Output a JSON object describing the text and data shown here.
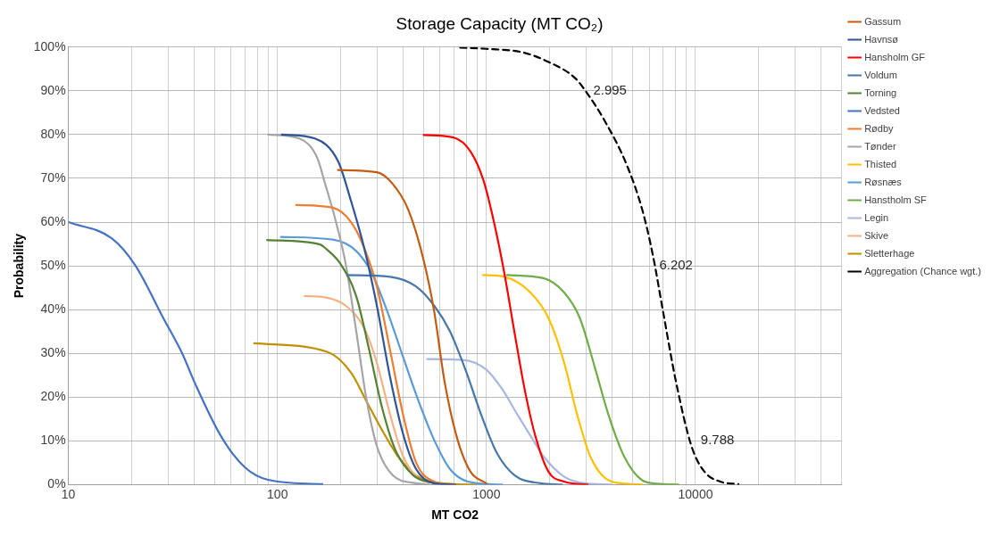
{
  "chart_data": {
    "type": "line",
    "title": "Storage Capacity (MT CO₂)",
    "xlabel": "MT CO2",
    "ylabel": "Probability",
    "log": "x",
    "grid": true,
    "legend": "top right",
    "marker": "none",
    "xlim": [
      10,
      50000
    ],
    "xticks": [
      10,
      {
        "value": 20,
        "label": null
      },
      {
        "value": 30,
        "label": null
      },
      {
        "value": 40,
        "label": null
      },
      {
        "value": 50,
        "label": null
      },
      {
        "value": 60,
        "label": null
      },
      {
        "value": 70,
        "label": null
      },
      {
        "value": 80,
        "label": null
      },
      {
        "value": 90,
        "label": null
      },
      100,
      {
        "value": 200,
        "label": null
      },
      {
        "value": 300,
        "label": null
      },
      {
        "value": 400,
        "label": null
      },
      {
        "value": 500,
        "label": null
      },
      {
        "value": 600,
        "label": null
      },
      {
        "value": 700,
        "label": null
      },
      {
        "value": 800,
        "label": null
      },
      {
        "value": 900,
        "label": null
      },
      1000,
      {
        "value": 2000,
        "label": null
      },
      {
        "value": 3000,
        "label": null
      },
      {
        "value": 4000,
        "label": null
      },
      {
        "value": 5000,
        "label": null
      },
      {
        "value": 6000,
        "label": null
      },
      {
        "value": 7000,
        "label": null
      },
      {
        "value": 8000,
        "label": null
      },
      {
        "value": 9000,
        "label": null
      },
      10000,
      {
        "value": 20000,
        "label": null
      },
      {
        "value": 30000,
        "label": null
      },
      {
        "value": 40000,
        "label": null
      },
      {
        "value": 50000,
        "label": null
      }
    ],
    "ylim": [
      0,
      100
    ],
    "yticks": [
      {
        "value": 0,
        "label": "0%"
      },
      {
        "value": 10,
        "label": "10%"
      },
      {
        "value": 20,
        "label": "20%"
      },
      {
        "value": 30,
        "label": "30%"
      },
      {
        "value": 40,
        "label": "40%"
      },
      {
        "value": 50,
        "label": "50%"
      },
      {
        "value": 60,
        "label": "60%"
      },
      {
        "value": 70,
        "label": "70%"
      },
      {
        "value": 80,
        "label": "80%"
      },
      {
        "value": 90,
        "label": "90%"
      },
      {
        "value": 100,
        "label": "100%"
      }
    ],
    "series": [
      {
        "name": "Gassum",
        "color": "#c55a11",
        "x": [
          195,
          299,
          355,
          422,
          501,
          562,
          631,
          728,
          840,
          997
        ],
        "values": [
          71.9,
          71.4,
          68.8,
          62.9,
          51.2,
          39.6,
          23.4,
          10.2,
          2.9,
          0.3
        ]
      },
      {
        "name": "Havnsø",
        "color": "#2f5597",
        "x": [
          105,
          151,
          195,
          224,
          260,
          299,
          345,
          399,
          460,
          562,
          709
        ],
        "values": [
          80,
          79.1,
          73.9,
          65.1,
          54.1,
          40.9,
          24.8,
          11.6,
          3.6,
          0.3,
          0
        ]
      },
      {
        "name": "Hansholm GF",
        "color": "#ff0000",
        "x": [
          501,
          687,
          840,
          968,
          1086,
          1218,
          1366,
          1531,
          1718,
          1983,
          2355,
          3048
        ],
        "values": [
          79.9,
          79.4,
          76.1,
          69.5,
          60,
          48.3,
          34.4,
          21.2,
          10.9,
          2.9,
          0.7,
          0
        ]
      },
      {
        "name": "Voldum",
        "color": "#4677a8",
        "x": [
          215,
          346,
          460,
          562,
          668,
          793,
          943,
          1119,
          1366,
          1820,
          2291
        ],
        "values": [
          47.9,
          47.5,
          45.3,
          40.9,
          35.1,
          26.3,
          16,
          7.3,
          2.1,
          0.3,
          0
        ]
      },
      {
        "name": "Torning",
        "color": "#548235",
        "x": [
          89.3,
          160,
          169,
          200,
          238,
          275,
          317,
          366,
          447,
          562
        ],
        "values": [
          55.9,
          54.9,
          54.1,
          50.5,
          43.1,
          30.7,
          17.5,
          8,
          2.1,
          0.3
        ]
      },
      {
        "name": "Vedsted",
        "color": "#4472c4",
        "x": [
          10,
          16.1,
          20.9,
          28.5,
          35.1,
          40.2,
          53.8,
          69.7,
          90.2,
          164
        ],
        "values": [
          60,
          56.3,
          50.1,
          38,
          29.9,
          23.3,
          11,
          4,
          1.1,
          0.1
        ]
      },
      {
        "name": "Rødby",
        "color": "#ed7d31",
        "x": [
          123,
          184,
          225,
          260,
          299,
          346,
          399,
          460,
          562,
          708
        ],
        "values": [
          63.9,
          63.3,
          60,
          54.1,
          45.3,
          30.7,
          16,
          5.1,
          0.7,
          0
        ]
      },
      {
        "name": "Tønder",
        "color": "#a5a5a5",
        "x": [
          90.3,
          127,
          155,
          169,
          189,
          212,
          238,
          266,
          299,
          355,
          460,
          530
        ],
        "values": [
          80,
          79.1,
          74.7,
          68.8,
          60.7,
          50.5,
          35.2,
          19.8,
          8.8,
          2.2,
          0.3,
          0
        ]
      },
      {
        "name": "Thisted",
        "color": "#ffc000",
        "x": [
          963,
          1218,
          1623,
          1983,
          2355,
          2716,
          3134,
          3723,
          4677,
          5556
        ],
        "values": [
          47.9,
          47.5,
          43.9,
          38,
          27.8,
          16,
          6.5,
          1.4,
          0.2,
          0
        ]
      },
      {
        "name": "Røsnæs",
        "color": "#5b9bd5",
        "x": [
          104,
          184,
          238,
          283,
          336,
          399,
          474,
          562,
          668,
          816,
          1186
        ],
        "values": [
          56.6,
          56,
          53.4,
          48.3,
          39.5,
          29.2,
          19,
          10.2,
          3.6,
          0.7,
          0
        ]
      },
      {
        "name": "Hanstholm SF",
        "color": "#70ad47",
        "x": [
          1254,
          1872,
          2355,
          2800,
          3321,
          3831,
          4548,
          5556,
          6607,
          8299
        ],
        "values": [
          47.9,
          47.2,
          43.9,
          38,
          26.3,
          16,
          6.5,
          1,
          0.2,
          0
        ]
      },
      {
        "name": "Legin",
        "color": "#a9b8e0",
        "x": [
          520,
          771,
          997,
          1186,
          1406,
          1671,
          1872,
          2355,
          2958,
          3944
        ],
        "values": [
          28.7,
          28.5,
          26.3,
          21.9,
          16,
          10.2,
          6.5,
          1.8,
          0.3,
          0
        ]
      },
      {
        "name": "Skive",
        "color": "#f4b183",
        "x": [
          135,
          169,
          212,
          260,
          299,
          346,
          399,
          474,
          595
        ],
        "values": [
          43.1,
          42.8,
          40.9,
          35.8,
          27.8,
          16,
          6.5,
          1.4,
          0.2
        ]
      },
      {
        "name": "Sletterhage",
        "color": "#bf9000",
        "x": [
          77.4,
          174,
          225,
          267,
          317,
          377,
          460,
          612,
          889
        ],
        "values": [
          32.3,
          30.3,
          25.6,
          19,
          12.4,
          6.5,
          2.1,
          0.3,
          0
        ]
      },
      {
        "name": "Aggregation (Chance wgt.)",
        "color": "#000000",
        "line_style": "dashed",
        "x": [
          748,
          997,
          1489,
          1983,
          2642,
          3048,
          3723,
          4677,
          5556,
          6237,
          6998,
          8074,
          9580,
          11060,
          13120,
          16030
        ],
        "values": [
          99.9,
          99.6,
          98.8,
          96.6,
          93,
          89.3,
          82.7,
          73.2,
          62.9,
          52.7,
          39.5,
          23.4,
          8.7,
          2.9,
          0.7,
          0.1
        ]
      }
    ],
    "annotations": [
      {
        "text": "2.995",
        "x": 2995,
        "y": 90
      },
      {
        "text": "6.202",
        "x": 6202,
        "y": 50
      },
      {
        "text": "9.788",
        "x": 9788,
        "y": 10
      }
    ]
  }
}
